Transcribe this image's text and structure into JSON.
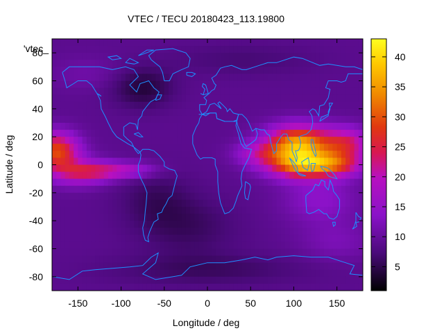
{
  "chart_data": {
    "type": "heatmap",
    "title": "VTEC / TECU 20180423_113.19800",
    "xlabel": "Longitude / deg",
    "ylabel": "Latitude / deg",
    "xlim": [
      -180,
      180
    ],
    "ylim": [
      -90,
      90
    ],
    "x_ticks": [
      -150,
      -100,
      -50,
      0,
      50,
      100,
      150
    ],
    "y_ticks": [
      -80,
      -60,
      -40,
      -20,
      0,
      20,
      40,
      60,
      80
    ],
    "x_tick_labels": [
      "-150",
      "-100",
      "-50",
      "0",
      "50",
      "100",
      "150"
    ],
    "y_tick_labels": [
      "-80",
      "-60",
      "-40",
      "-20",
      "0",
      "20",
      "40",
      "60",
      "80"
    ],
    "key_label": "'vtec_",
    "overlay": "coastlines",
    "overlay_color": "#1e90ff",
    "colorbar": {
      "range": [
        1,
        43
      ],
      "ticks": [
        5,
        10,
        15,
        20,
        25,
        30,
        35,
        40
      ],
      "tick_labels": [
        "5",
        "10",
        "15",
        "20",
        "25",
        "30",
        "35",
        "40"
      ],
      "colormap": "black-purple-red-orange-yellow"
    },
    "field": {
      "background": 9,
      "features": [
        {
          "lon": -175,
          "lat": 10,
          "sigma_lon": 18,
          "sigma_lat": 9,
          "amp": 20
        },
        {
          "lon": -150,
          "lat": -5,
          "sigma_lon": 25,
          "sigma_lat": 7,
          "amp": 10
        },
        {
          "lon": -120,
          "lat": -5,
          "sigma_lon": 30,
          "sigma_lat": 4,
          "amp": 8
        },
        {
          "lon": -90,
          "lat": -3,
          "sigma_lon": 25,
          "sigma_lat": 4,
          "amp": 5
        },
        {
          "lon": 105,
          "lat": 15,
          "sigma_lon": 25,
          "sigma_lat": 9,
          "amp": 26
        },
        {
          "lon": 110,
          "lat": 0,
          "sigma_lon": 28,
          "sigma_lat": 7,
          "amp": 22
        },
        {
          "lon": 160,
          "lat": 15,
          "sigma_lon": 20,
          "sigma_lat": 8,
          "amp": 14
        },
        {
          "lon": 150,
          "lat": 0,
          "sigma_lon": 22,
          "sigma_lat": 6,
          "amp": 12
        },
        {
          "lon": 60,
          "lat": 8,
          "sigma_lon": 20,
          "sigma_lat": 6,
          "amp": 8
        },
        {
          "lon": 130,
          "lat": -25,
          "sigma_lon": 30,
          "sigma_lat": 12,
          "amp": 5
        },
        {
          "lon": -75,
          "lat": 55,
          "sigma_lon": 25,
          "sigma_lat": 10,
          "amp": -5
        },
        {
          "lon": -60,
          "lat": -25,
          "sigma_lon": 30,
          "sigma_lat": 15,
          "amp": -3
        },
        {
          "lon": -20,
          "lat": -45,
          "sigma_lon": 40,
          "sigma_lat": 15,
          "amp": -3
        },
        {
          "lon": 0,
          "lat": -75,
          "sigma_lon": 80,
          "sigma_lat": 8,
          "amp": -3
        },
        {
          "lon": 150,
          "lat": -55,
          "sigma_lon": 30,
          "sigma_lat": 10,
          "amp": 3
        },
        {
          "lon": 40,
          "lat": 75,
          "sigma_lon": 60,
          "sigma_lat": 8,
          "amp": -2
        },
        {
          "lon": -140,
          "lat": 65,
          "sigma_lon": 30,
          "sigma_lat": 8,
          "amp": 2
        }
      ]
    }
  }
}
